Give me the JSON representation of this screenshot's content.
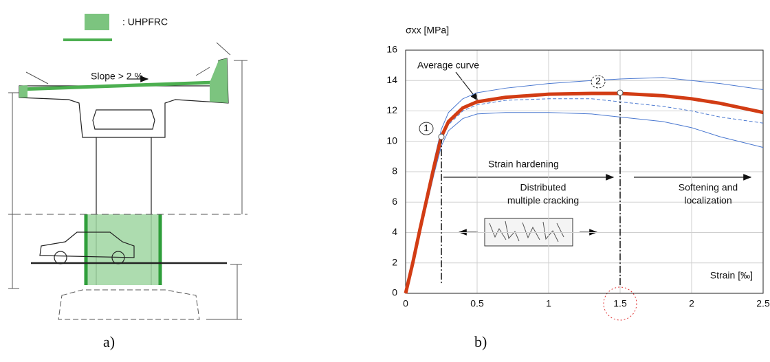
{
  "diagram": {
    "legend_label": ": UHPFRC",
    "slope_label": "Slope > 2 %"
  },
  "panel_labels": [
    "a)",
    "b)"
  ],
  "chart_data": {
    "type": "line",
    "y_label": "σxx [MPa]",
    "x_label": "Strain [‰]",
    "annotations": [
      "Average curve",
      "Strain hardening",
      "Distributed",
      "multiple cracking",
      "Softening and",
      "localization"
    ],
    "x": [
      0,
      0.05,
      0.1,
      0.15,
      0.2,
      0.25,
      0.3,
      0.4,
      0.5,
      0.7,
      1.0,
      1.3,
      1.5,
      1.8,
      2.0,
      2.2,
      2.5
    ],
    "series": [
      {
        "color": "#4a78d0",
        "values": [
          0,
          2.1,
          4.4,
          6.6,
          8.8,
          10.8,
          11.9,
          12.8,
          13.2,
          13.5,
          13.8,
          14.0,
          14.1,
          14.2,
          14.0,
          13.8,
          13.4
        ]
      },
      {
        "color": "#4a78d0",
        "values": [
          0,
          2.0,
          4.1,
          6.1,
          8.2,
          10.1,
          11.1,
          12.0,
          12.4,
          12.7,
          12.8,
          12.8,
          12.6,
          12.3,
          12.0,
          11.6,
          11.2
        ]
      },
      {
        "color": "#4a78d0",
        "values": [
          0,
          1.8,
          3.9,
          5.9,
          7.9,
          9.7,
          10.7,
          11.5,
          11.8,
          11.9,
          11.9,
          11.8,
          11.6,
          11.3,
          10.9,
          10.3,
          9.6
        ]
      },
      {
        "color": "#d23c14",
        "values": [
          0,
          2.0,
          4.2,
          6.3,
          8.4,
          10.3,
          11.3,
          12.2,
          12.6,
          12.9,
          13.1,
          13.15,
          13.15,
          13.0,
          12.8,
          12.5,
          11.9
        ]
      }
    ],
    "markers": [
      {
        "x": 0.25,
        "y": 10.3,
        "label": "1"
      },
      {
        "x": 1.5,
        "y": 13.2,
        "label": "2"
      }
    ],
    "xlim": [
      0,
      2.5
    ],
    "ylim": [
      0,
      16
    ],
    "xticks": [
      0,
      0.5,
      1,
      1.5,
      2,
      2.5
    ],
    "yticks": [
      0,
      2,
      4,
      6,
      8,
      10,
      12,
      14,
      16
    ],
    "grid": true
  }
}
